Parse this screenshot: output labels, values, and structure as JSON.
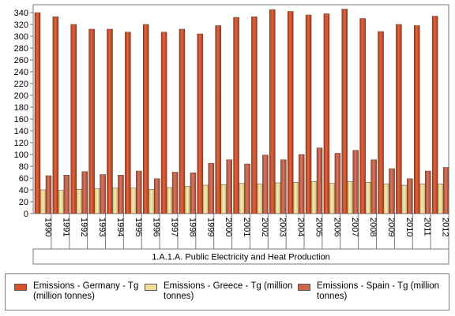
{
  "chart_data": {
    "type": "bar",
    "categories": [
      "1990",
      "1991",
      "1992",
      "1993",
      "1994",
      "1995",
      "1996",
      "1997",
      "1998",
      "1999",
      "2000",
      "2001",
      "2002",
      "2003",
      "2004",
      "2005",
      "2006",
      "2007",
      "2008",
      "2009",
      "2010",
      "2011",
      "2012"
    ],
    "group_label": "1.A.1.A. Public Electricity and Heat Production",
    "ylim": [
      0,
      340
    ],
    "yticks": [
      0,
      20,
      40,
      60,
      80,
      100,
      120,
      140,
      160,
      180,
      200,
      220,
      240,
      260,
      280,
      300,
      320,
      340
    ],
    "grid": false,
    "legend_position": "bottom",
    "series": [
      {
        "name": "Emissions - Germany - Tg (million tonnes)",
        "color": "#d9522c",
        "values": [
          340,
          333,
          320,
          312,
          312,
          307,
          320,
          307,
          312,
          304,
          318,
          332,
          333,
          345,
          342,
          336,
          338,
          346,
          330,
          308,
          320,
          318,
          334
        ]
      },
      {
        "name": "Emissions - Greece - Tg (million tonnes)",
        "color": "#f1dc9a",
        "values": [
          40,
          39,
          41,
          42,
          43,
          43,
          41,
          44,
          46,
          48,
          49,
          51,
          50,
          52,
          53,
          54,
          51,
          54,
          53,
          50,
          48,
          50,
          50
        ]
      },
      {
        "name": "Emissions - Spain - Tg (million tonnes)",
        "color": "#cc6650",
        "values": [
          64,
          65,
          71,
          66,
          65,
          72,
          59,
          70,
          69,
          85,
          91,
          84,
          99,
          91,
          100,
          111,
          102,
          107,
          91,
          76,
          59,
          72,
          78
        ]
      }
    ]
  }
}
